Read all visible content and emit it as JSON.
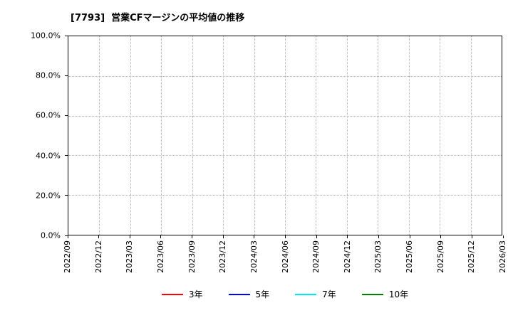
{
  "title": "[7793]  営業CFマージンの平均値の推移",
  "chart_data": {
    "type": "line",
    "title": "[7793]  営業CFマージンの平均値の推移",
    "x": [
      "2022/09",
      "2022/12",
      "2023/03",
      "2023/06",
      "2023/09",
      "2023/12",
      "2024/03",
      "2024/06",
      "2024/09",
      "2024/12",
      "2025/03",
      "2025/06",
      "2025/09",
      "2025/12",
      "2026/03"
    ],
    "y_ticks": [
      "100.0%",
      "80.0%",
      "60.0%",
      "40.0%",
      "20.0%",
      "0.0%"
    ],
    "ylim": [
      0,
      100
    ],
    "xlabel": "",
    "ylabel": "",
    "grid": true,
    "grid_style": "dotted",
    "legend_position": "bottom",
    "series": [
      {
        "name": "3年",
        "color": "#ff0000",
        "values": []
      },
      {
        "name": "5年",
        "color": "#0000ff",
        "values": []
      },
      {
        "name": "7年",
        "color": "#00e5ee",
        "values": []
      },
      {
        "name": "10年",
        "color": "#008000",
        "values": []
      }
    ]
  }
}
